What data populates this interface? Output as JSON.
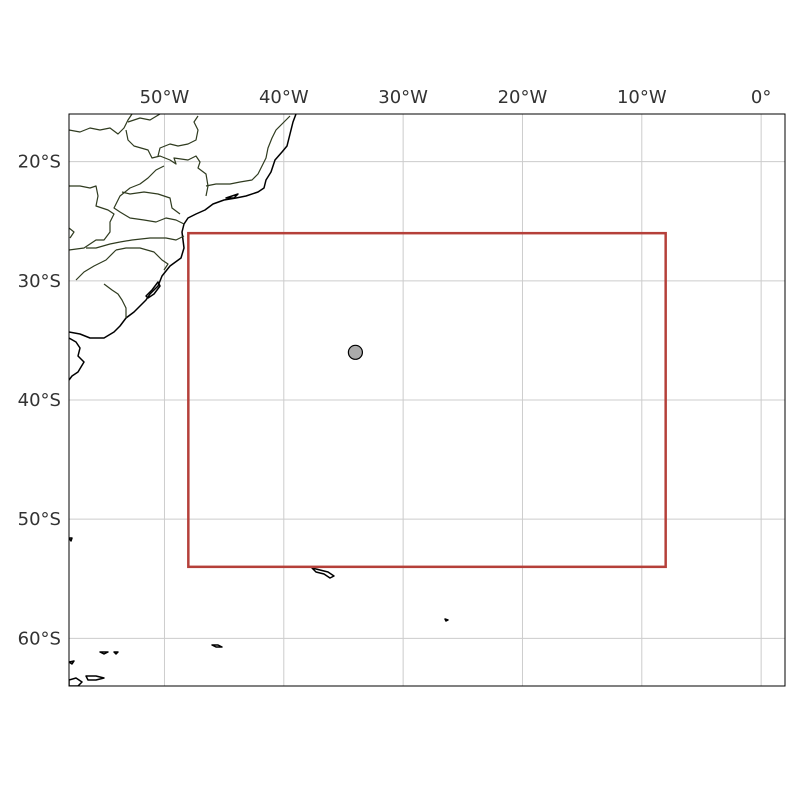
{
  "map": {
    "extent": {
      "lon_min": -58,
      "lon_max": 2,
      "lat_min": -64,
      "lat_max": -16
    },
    "gridlines": true,
    "lon_ticks": [
      {
        "value": -50,
        "label": "50°W"
      },
      {
        "value": -40,
        "label": "40°W"
      },
      {
        "value": -30,
        "label": "30°W"
      },
      {
        "value": -20,
        "label": "20°W"
      },
      {
        "value": -10,
        "label": "10°W"
      },
      {
        "value": 0,
        "label": "0°"
      }
    ],
    "lat_ticks": [
      {
        "value": -20,
        "label": "20°S"
      },
      {
        "value": -30,
        "label": "30°S"
      },
      {
        "value": -40,
        "label": "40°S"
      },
      {
        "value": -50,
        "label": "50°S"
      },
      {
        "value": -60,
        "label": "60°S"
      }
    ],
    "region_box": {
      "lon_min": -48,
      "lon_max": -8,
      "lat_min": -54,
      "lat_max": -26,
      "color": "#b5403a"
    },
    "point": {
      "lon": -34,
      "lat": -36,
      "color": "#aaaaaa"
    },
    "colors": {
      "land_outline": "#000000",
      "state_borders": "#2f3b1f",
      "grid": "#cccccc"
    }
  }
}
